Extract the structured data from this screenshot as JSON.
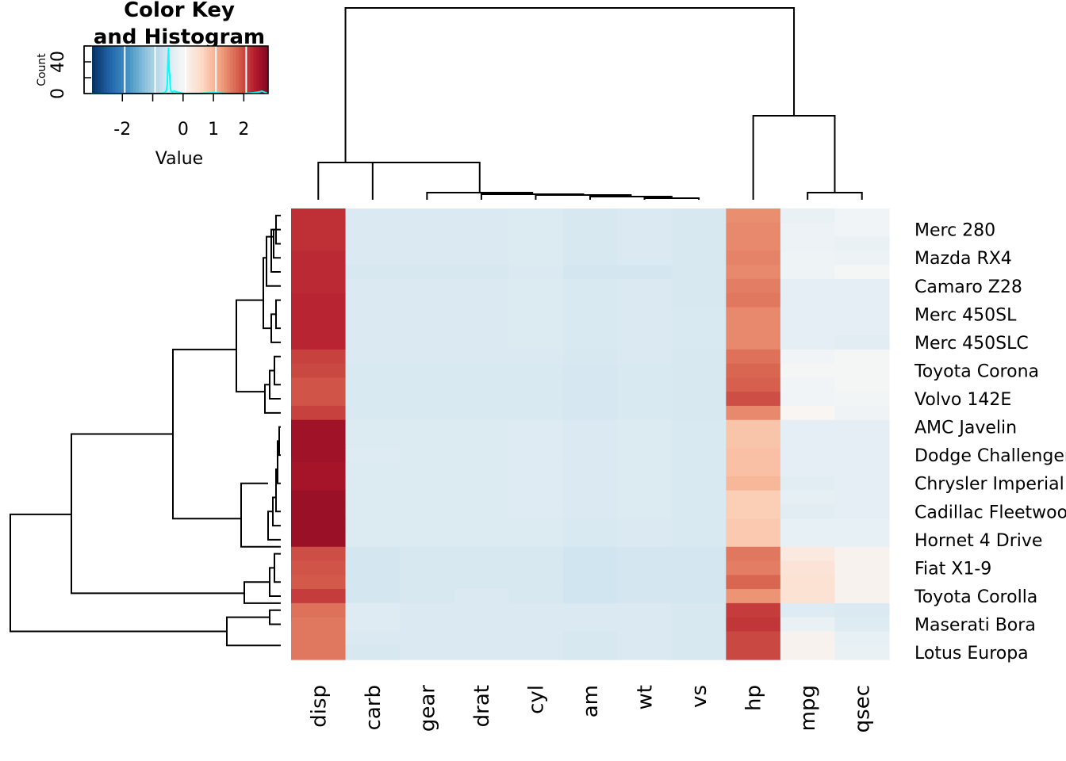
{
  "chart_data": {
    "type": "heatmap",
    "title": "",
    "columns": [
      "disp",
      "carb",
      "gear",
      "drat",
      "cyl",
      "am",
      "wt",
      "vs",
      "hp",
      "mpg",
      "qsec"
    ],
    "row_labels_shown": [
      "Merc 280",
      "Mazda RX4",
      "Camaro Z28",
      "Merc 450SL",
      "Merc 450SLC",
      "Toyota Corona",
      "Volvo 142E",
      "AMC Javelin",
      "Dodge Challenger",
      "Chrysler Imperial",
      "Cadillac Fleetwood",
      "Hornet 4 Drive",
      "Fiat X1-9",
      "Toyota Corolla",
      "Maserati Bora",
      "Lotus Europa"
    ],
    "row_label_positions": [
      1,
      3,
      5,
      7,
      9,
      11,
      13,
      15,
      17,
      19,
      21,
      23,
      25,
      27,
      29,
      31
    ],
    "n_rows": 32,
    "color_scale": {
      "name": "RdBu",
      "range": [
        -3,
        3
      ],
      "colors": [
        "#053061",
        "#2166ac",
        "#4393c3",
        "#92c5de",
        "#d1e5f0",
        "#f7f7f7",
        "#fddbc7",
        "#f4a582",
        "#d6604d",
        "#b2182b",
        "#67001f"
      ]
    },
    "values": [
      [
        2.2,
        -0.45,
        -0.45,
        -0.45,
        -0.42,
        -0.5,
        -0.45,
        -0.5,
        1.4,
        -0.2,
        -0.1
      ],
      [
        2.2,
        -0.45,
        -0.45,
        -0.45,
        -0.42,
        -0.5,
        -0.45,
        -0.5,
        1.45,
        -0.18,
        -0.1
      ],
      [
        2.2,
        -0.45,
        -0.45,
        -0.45,
        -0.42,
        -0.5,
        -0.45,
        -0.5,
        1.45,
        -0.17,
        -0.2
      ],
      [
        2.25,
        -0.45,
        -0.45,
        -0.45,
        -0.42,
        -0.5,
        -0.45,
        -0.5,
        1.5,
        -0.15,
        -0.18
      ],
      [
        2.25,
        -0.5,
        -0.5,
        -0.5,
        -0.45,
        -0.55,
        -0.55,
        -0.5,
        1.45,
        -0.15,
        -0.05
      ],
      [
        2.25,
        -0.45,
        -0.45,
        -0.45,
        -0.42,
        -0.48,
        -0.45,
        -0.5,
        1.55,
        -0.3,
        -0.3
      ],
      [
        2.3,
        -0.45,
        -0.45,
        -0.45,
        -0.42,
        -0.48,
        -0.45,
        -0.5,
        1.6,
        -0.3,
        -0.3
      ],
      [
        2.3,
        -0.45,
        -0.45,
        -0.45,
        -0.42,
        -0.48,
        -0.45,
        -0.48,
        1.45,
        -0.3,
        -0.3
      ],
      [
        2.3,
        -0.45,
        -0.45,
        -0.45,
        -0.42,
        -0.48,
        -0.45,
        -0.48,
        1.45,
        -0.3,
        -0.3
      ],
      [
        2.3,
        -0.45,
        -0.45,
        -0.45,
        -0.42,
        -0.48,
        -0.45,
        -0.48,
        1.45,
        -0.3,
        -0.35
      ],
      [
        2.05,
        -0.45,
        -0.45,
        -0.45,
        -0.45,
        -0.5,
        -0.45,
        -0.5,
        1.65,
        -0.1,
        -0.05
      ],
      [
        2.0,
        -0.48,
        -0.48,
        -0.48,
        -0.48,
        -0.52,
        -0.48,
        -0.5,
        1.75,
        -0.05,
        -0.05
      ],
      [
        1.9,
        -0.48,
        -0.48,
        -0.48,
        -0.48,
        -0.52,
        -0.48,
        -0.5,
        1.8,
        -0.1,
        -0.05
      ],
      [
        1.9,
        -0.48,
        -0.48,
        -0.48,
        -0.48,
        -0.52,
        -0.48,
        -0.5,
        1.95,
        -0.1,
        -0.08
      ],
      [
        2.05,
        -0.48,
        -0.48,
        -0.48,
        -0.48,
        -0.52,
        -0.48,
        -0.5,
        1.45,
        0.05,
        -0.12
      ],
      [
        2.55,
        -0.42,
        -0.42,
        -0.42,
        -0.4,
        -0.45,
        -0.42,
        -0.48,
        0.85,
        -0.3,
        -0.3
      ],
      [
        2.55,
        -0.42,
        -0.42,
        -0.42,
        -0.4,
        -0.45,
        -0.42,
        -0.48,
        0.85,
        -0.3,
        -0.3
      ],
      [
        2.55,
        -0.4,
        -0.42,
        -0.42,
        -0.4,
        -0.45,
        -0.42,
        -0.48,
        0.9,
        -0.3,
        -0.3
      ],
      [
        2.5,
        -0.42,
        -0.42,
        -0.42,
        -0.4,
        -0.45,
        -0.42,
        -0.48,
        0.9,
        -0.3,
        -0.3
      ],
      [
        2.5,
        -0.42,
        -0.42,
        -0.42,
        -0.4,
        -0.45,
        -0.42,
        -0.48,
        1.0,
        -0.35,
        -0.3
      ],
      [
        2.6,
        -0.42,
        -0.42,
        -0.42,
        -0.4,
        -0.45,
        -0.42,
        -0.48,
        0.75,
        -0.28,
        -0.3
      ],
      [
        2.6,
        -0.42,
        -0.42,
        -0.42,
        -0.4,
        -0.45,
        -0.42,
        -0.48,
        0.75,
        -0.35,
        -0.3
      ],
      [
        2.6,
        -0.42,
        -0.42,
        -0.42,
        -0.42,
        -0.48,
        -0.45,
        -0.48,
        0.8,
        -0.25,
        -0.25
      ],
      [
        2.6,
        -0.42,
        -0.42,
        -0.42,
        -0.42,
        -0.48,
        -0.45,
        -0.48,
        0.8,
        -0.25,
        -0.25
      ],
      [
        1.95,
        -0.55,
        -0.5,
        -0.5,
        -0.5,
        -0.6,
        -0.55,
        -0.55,
        1.6,
        0.3,
        0.1
      ],
      [
        1.9,
        -0.55,
        -0.5,
        -0.5,
        -0.5,
        -0.6,
        -0.55,
        -0.55,
        1.55,
        0.4,
        0.1
      ],
      [
        1.85,
        -0.55,
        -0.5,
        -0.5,
        -0.5,
        -0.6,
        -0.55,
        -0.55,
        1.75,
        0.45,
        0.1
      ],
      [
        2.1,
        -0.55,
        -0.5,
        -0.45,
        -0.5,
        -0.6,
        -0.55,
        -0.55,
        1.35,
        0.45,
        0.1
      ],
      [
        1.65,
        -0.4,
        -0.45,
        -0.45,
        -0.45,
        -0.45,
        -0.45,
        -0.5,
        2.1,
        -0.4,
        -0.45
      ],
      [
        1.6,
        -0.4,
        -0.45,
        -0.45,
        -0.45,
        -0.45,
        -0.45,
        -0.5,
        2.15,
        -0.2,
        -0.4
      ],
      [
        1.6,
        -0.45,
        -0.45,
        -0.45,
        -0.45,
        -0.5,
        -0.45,
        -0.5,
        2.0,
        0.1,
        -0.25
      ],
      [
        1.6,
        -0.5,
        -0.45,
        -0.45,
        -0.45,
        -0.5,
        -0.45,
        -0.5,
        2.0,
        0.1,
        -0.2
      ]
    ],
    "color_key": {
      "title_line1": "Color Key",
      "title_line2": "and Histogram",
      "xlabel": "Value",
      "ylabel": "Count",
      "x_ticks": [
        -2,
        0,
        1,
        2
      ],
      "x_tick_labels": [
        "-2",
        "0",
        "1",
        "2"
      ],
      "x_minor_ticks": [
        -1
      ],
      "x_range": [
        -3,
        2.8
      ],
      "y_ticks": [
        0,
        40
      ],
      "y_tick_labels": [
        "0",
        "40"
      ],
      "y_range": [
        0,
        60
      ],
      "breaks": [
        -2,
        -1,
        0,
        1,
        2
      ],
      "histogram_line_color": "#00ffff",
      "histogram": {
        "x": [
          -3.0,
          -2.0,
          -1.0,
          -0.7,
          -0.6,
          -0.55,
          -0.52,
          -0.5,
          -0.48,
          -0.46,
          -0.44,
          -0.42,
          -0.4,
          -0.35,
          -0.3,
          -0.2,
          -0.1,
          0.0,
          0.5,
          1.0,
          1.5,
          2.0,
          2.3,
          2.5,
          2.6,
          2.8
        ],
        "y": [
          0,
          0,
          0,
          0,
          1,
          4,
          12,
          40,
          58,
          30,
          22,
          8,
          3,
          2,
          3,
          2,
          1,
          0,
          0,
          1,
          0,
          0,
          1,
          2,
          3,
          0
        ]
      }
    },
    "col_dendrogram": {
      "merges": [
        {
          "a": "vs",
          "b": "wt",
          "height": 0.02
        },
        {
          "a": "am",
          "b": "vs+wt",
          "height": 0.03
        },
        {
          "a": "cyl",
          "b": "am+vs+wt",
          "height": 0.05
        },
        {
          "a": "drat",
          "b": "cyl..",
          "height": 0.07
        },
        {
          "a": "gear",
          "b": "drat..",
          "height": 0.1
        },
        {
          "a": "carb",
          "b": "gear..",
          "height": 0.14
        },
        {
          "a": "disp",
          "b": "carb..",
          "height": 0.8
        },
        {
          "a": "mpg",
          "b": "qsec",
          "height": 0.14
        },
        {
          "a": "hp",
          "b": "mpg+qsec",
          "height": 1.55
        },
        {
          "a": "left",
          "b": "right",
          "height": 3.5
        }
      ]
    }
  }
}
